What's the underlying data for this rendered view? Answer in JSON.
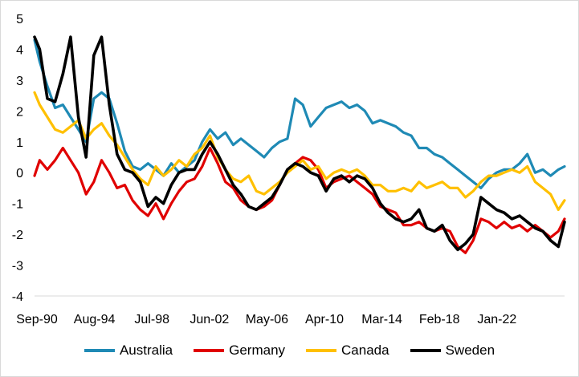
{
  "chart_data": {
    "type": "line",
    "title": "",
    "xlabel": "",
    "ylabel": "",
    "x_start": "Sep-90",
    "x_end": "Dec-24",
    "x_tick_labels": [
      "Sep-90",
      "Aug-94",
      "Jul-98",
      "Jun-02",
      "May-06",
      "Apr-10",
      "Mar-14",
      "Feb-18",
      "Jan-22"
    ],
    "y_ticks": [
      5,
      4,
      3,
      2,
      1,
      0,
      -1,
      -2,
      -3,
      -4
    ],
    "ylim": [
      -4,
      5
    ],
    "grid": false,
    "legend_position": "bottom",
    "x": [
      1990.67,
      1991.0,
      1991.5,
      1992.0,
      1992.5,
      1993.0,
      1993.5,
      1994.0,
      1994.5,
      1995.0,
      1995.5,
      1996.0,
      1996.5,
      1997.0,
      1997.5,
      1998.0,
      1998.5,
      1999.0,
      1999.5,
      2000.0,
      2000.5,
      2001.0,
      2001.5,
      2002.0,
      2002.5,
      2003.0,
      2003.5,
      2004.0,
      2004.5,
      2005.0,
      2005.5,
      2006.0,
      2006.5,
      2007.0,
      2007.5,
      2008.0,
      2008.5,
      2009.0,
      2009.5,
      2010.0,
      2010.5,
      2011.0,
      2011.5,
      2012.0,
      2012.5,
      2013.0,
      2013.5,
      2014.0,
      2014.5,
      2015.0,
      2015.5,
      2016.0,
      2016.5,
      2017.0,
      2017.5,
      2018.0,
      2018.5,
      2019.0,
      2019.5,
      2020.0,
      2020.5,
      2021.0,
      2021.5,
      2022.0,
      2022.5,
      2023.0,
      2023.5,
      2024.0,
      2024.5,
      2024.9
    ],
    "series": [
      {
        "name": "Australia",
        "color": "#1f8ab5",
        "values": [
          4.3,
          3.6,
          2.8,
          2.1,
          2.2,
          1.8,
          1.4,
          1.0,
          2.4,
          2.6,
          2.4,
          1.6,
          0.7,
          0.2,
          0.1,
          0.3,
          0.1,
          -0.1,
          0.3,
          0.0,
          0.2,
          0.4,
          1.0,
          1.4,
          1.1,
          1.3,
          0.9,
          1.1,
          0.9,
          0.7,
          0.5,
          0.8,
          1.0,
          1.1,
          2.4,
          2.2,
          1.5,
          1.8,
          2.1,
          2.2,
          2.3,
          2.1,
          2.2,
          2.0,
          1.6,
          1.7,
          1.6,
          1.5,
          1.3,
          1.2,
          0.8,
          0.8,
          0.6,
          0.5,
          0.3,
          0.1,
          -0.1,
          -0.3,
          -0.5,
          -0.2,
          0.0,
          0.1,
          0.1,
          0.3,
          0.6,
          0.0,
          0.1,
          -0.1,
          0.1,
          0.2
        ]
      },
      {
        "name": "Germany",
        "color": "#e00000",
        "values": [
          -0.1,
          0.4,
          0.1,
          0.4,
          0.8,
          0.4,
          0.0,
          -0.7,
          -0.3,
          0.4,
          0.0,
          -0.5,
          -0.4,
          -0.9,
          -1.2,
          -1.4,
          -1.0,
          -1.5,
          -1.0,
          -0.6,
          -0.3,
          -0.2,
          0.2,
          0.8,
          0.3,
          -0.3,
          -0.5,
          -0.9,
          -1.1,
          -1.2,
          -1.1,
          -0.9,
          -0.4,
          0.1,
          0.3,
          0.5,
          0.4,
          0.1,
          -0.5,
          -0.3,
          -0.2,
          -0.1,
          -0.3,
          -0.5,
          -0.7,
          -1.1,
          -1.2,
          -1.3,
          -1.7,
          -1.7,
          -1.6,
          -1.8,
          -1.9,
          -1.8,
          -1.9,
          -2.4,
          -2.6,
          -2.2,
          -1.5,
          -1.6,
          -1.8,
          -1.6,
          -1.8,
          -1.7,
          -1.9,
          -1.7,
          -1.9,
          -2.1,
          -1.9,
          -1.5
        ]
      },
      {
        "name": "Canada",
        "color": "#ffc000",
        "values": [
          2.6,
          2.2,
          1.8,
          1.4,
          1.3,
          1.5,
          1.7,
          1.1,
          1.4,
          1.6,
          1.2,
          0.9,
          0.5,
          0.1,
          -0.2,
          -0.4,
          0.2,
          -0.1,
          0.1,
          0.4,
          0.2,
          0.6,
          0.8,
          1.2,
          0.5,
          0.1,
          -0.2,
          -0.3,
          -0.1,
          -0.6,
          -0.7,
          -0.5,
          -0.3,
          0.0,
          0.2,
          0.4,
          0.1,
          0.2,
          -0.2,
          0.0,
          0.1,
          0.0,
          0.1,
          -0.1,
          -0.4,
          -0.4,
          -0.6,
          -0.6,
          -0.5,
          -0.6,
          -0.3,
          -0.5,
          -0.4,
          -0.3,
          -0.5,
          -0.5,
          -0.8,
          -0.6,
          -0.3,
          -0.1,
          -0.1,
          0.0,
          0.1,
          0.0,
          0.2,
          -0.3,
          -0.5,
          -0.7,
          -1.2,
          -0.9
        ]
      },
      {
        "name": "Sweden",
        "color": "#000000",
        "values": [
          4.4,
          4.0,
          2.4,
          2.3,
          3.2,
          4.4,
          1.8,
          0.5,
          3.8,
          4.4,
          2.2,
          0.6,
          0.1,
          0.0,
          -0.3,
          -1.1,
          -0.8,
          -1.0,
          -0.4,
          0.0,
          0.1,
          0.1,
          0.6,
          1.0,
          0.6,
          0.1,
          -0.4,
          -0.7,
          -1.1,
          -1.2,
          -1.0,
          -0.8,
          -0.4,
          0.1,
          0.3,
          0.2,
          0.0,
          -0.1,
          -0.6,
          -0.2,
          -0.1,
          -0.3,
          -0.1,
          -0.2,
          -0.5,
          -1.0,
          -1.3,
          -1.5,
          -1.6,
          -1.5,
          -1.2,
          -1.8,
          -1.9,
          -1.7,
          -2.2,
          -2.5,
          -2.3,
          -2.0,
          -0.8,
          -1.0,
          -1.2,
          -1.3,
          -1.5,
          -1.4,
          -1.6,
          -1.8,
          -1.9,
          -2.2,
          -2.4,
          -1.6
        ]
      }
    ]
  }
}
